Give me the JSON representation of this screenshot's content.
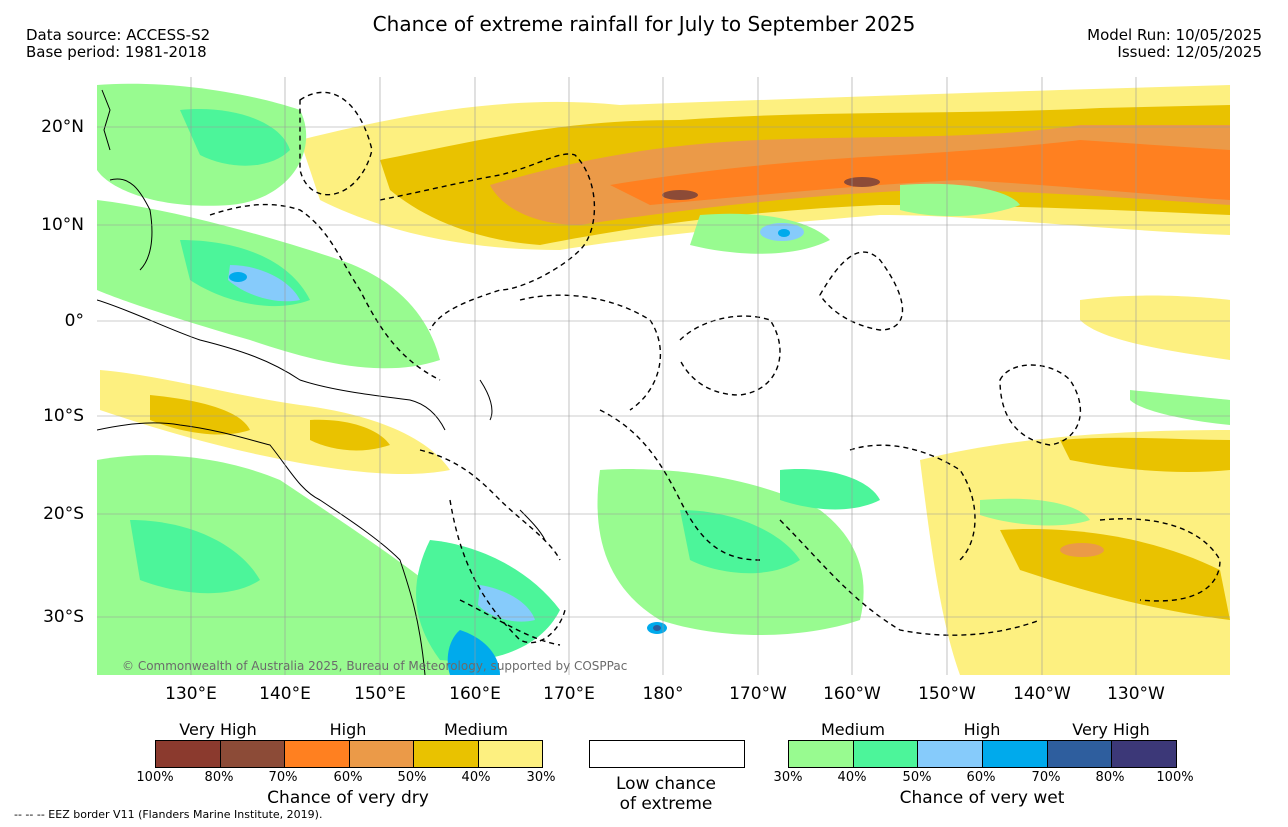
{
  "title": "Chance of extreme rainfall for July to September 2025",
  "meta_left": [
    "Data source: ACCESS-S2",
    "Base period: 1981-2018"
  ],
  "meta_right": [
    "Model Run: 10/05/2025",
    "Issued: 12/05/2025"
  ],
  "lat_labels": [
    "20°N",
    "10°N",
    "0°",
    "10°S",
    "20°S",
    "30°S"
  ],
  "lon_labels": [
    "130°E",
    "140°E",
    "150°E",
    "160°E",
    "170°E",
    "180°",
    "170°W",
    "160°W",
    "150°W",
    "140°W",
    "130°W"
  ],
  "copyright": "© Commonwealth of Australia 2025, Bureau of Meteorology, supported by COSPPac",
  "legend_dry": {
    "categories": [
      "Very High",
      "High",
      "Medium"
    ],
    "colors": [
      "#8b3a2e",
      "#8c4b37",
      "#ff8020",
      "#eb9a48",
      "#e9c200",
      "#fdf080"
    ],
    "ticks": [
      "100%",
      "80%",
      "70%",
      "60%",
      "50%",
      "40%",
      "30%"
    ],
    "caption": "Chance of very dry"
  },
  "legend_low": {
    "caption_line1": "Low chance",
    "caption_line2": "of extreme"
  },
  "legend_wet": {
    "categories": [
      "Medium",
      "High",
      "Very High"
    ],
    "colors": [
      "#98fb90",
      "#4cf59a",
      "#86cbfb",
      "#00aaec",
      "#2e5e9e",
      "#3c3878"
    ],
    "ticks": [
      "30%",
      "40%",
      "50%",
      "60%",
      "70%",
      "80%",
      "100%"
    ],
    "caption": "Chance of very wet"
  },
  "footnote": "--  --  -- EEZ border V11 (Flanders Marine Institute, 2019)."
}
